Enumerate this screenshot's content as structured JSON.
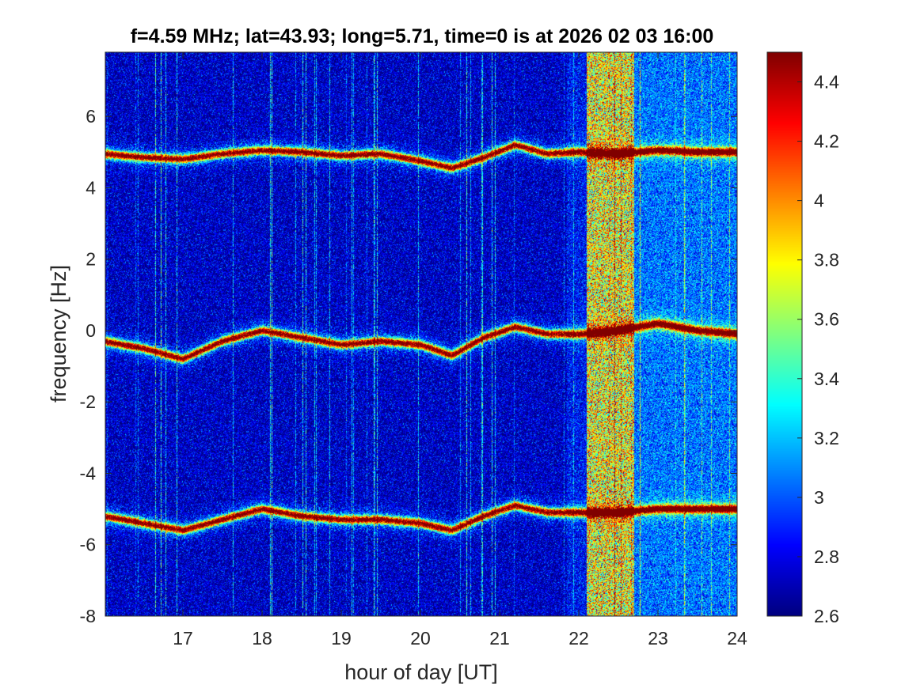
{
  "chart_data": {
    "type": "heatmap",
    "title": "f=4.59 MHz;  lat=43.93; long=5.71, time=0 is at 2026 02 03 16:00",
    "xlabel": "hour of day [UT]",
    "ylabel": "frequency [Hz]",
    "xlim": [
      16.02,
      24
    ],
    "ylim": [
      -8,
      7.8
    ],
    "xticks": [
      17,
      18,
      19,
      20,
      21,
      22,
      23,
      24
    ],
    "yticks": [
      -8,
      -6,
      -4,
      -2,
      0,
      2,
      4,
      6
    ],
    "colorbar": {
      "colormap": "jet",
      "limits": [
        2.6,
        4.5
      ],
      "ticks": [
        2.6,
        2.8,
        3,
        3.2,
        3.4,
        3.6,
        3.8,
        4,
        4.2,
        4.4
      ]
    },
    "grid": false,
    "series": [
      {
        "center_hz": 5,
        "x": [
          16.0,
          16.5,
          17.0,
          17.5,
          18.0,
          18.5,
          19.0,
          19.5,
          20.0,
          20.4,
          20.8,
          21.2,
          21.6,
          22.0,
          22.5,
          23.0,
          23.5,
          24.0
        ],
        "y": [
          4.95,
          4.85,
          4.8,
          4.95,
          5.05,
          5.0,
          4.9,
          4.95,
          4.75,
          4.55,
          4.85,
          5.2,
          4.95,
          5.0,
          4.95,
          5.05,
          5.0,
          5.0
        ]
      },
      {
        "center_hz": 0,
        "x": [
          16.0,
          16.5,
          17.0,
          17.5,
          18.0,
          18.5,
          19.0,
          19.5,
          20.0,
          20.4,
          20.8,
          21.2,
          21.6,
          22.0,
          22.5,
          23.0,
          23.5,
          24.0
        ],
        "y": [
          -0.3,
          -0.5,
          -0.8,
          -0.3,
          0.0,
          -0.2,
          -0.4,
          -0.3,
          -0.4,
          -0.7,
          -0.2,
          0.1,
          -0.1,
          -0.1,
          0.0,
          0.2,
          0.0,
          -0.1
        ]
      },
      {
        "center_hz": -5,
        "x": [
          16.0,
          16.5,
          17.0,
          17.5,
          18.0,
          18.5,
          19.0,
          19.5,
          20.0,
          20.4,
          20.8,
          21.2,
          21.6,
          22.0,
          22.5,
          23.0,
          23.5,
          24.0
        ],
        "y": [
          -5.2,
          -5.4,
          -5.6,
          -5.3,
          -5.0,
          -5.2,
          -5.3,
          -5.3,
          -5.4,
          -5.6,
          -5.2,
          -4.9,
          -5.1,
          -5.1,
          -5.1,
          -5.0,
          -5.0,
          -5.0
        ]
      }
    ],
    "broadband_noise_interval_hours": [
      22.1,
      22.7
    ],
    "elevated_noise_after_hour": 22.7
  }
}
